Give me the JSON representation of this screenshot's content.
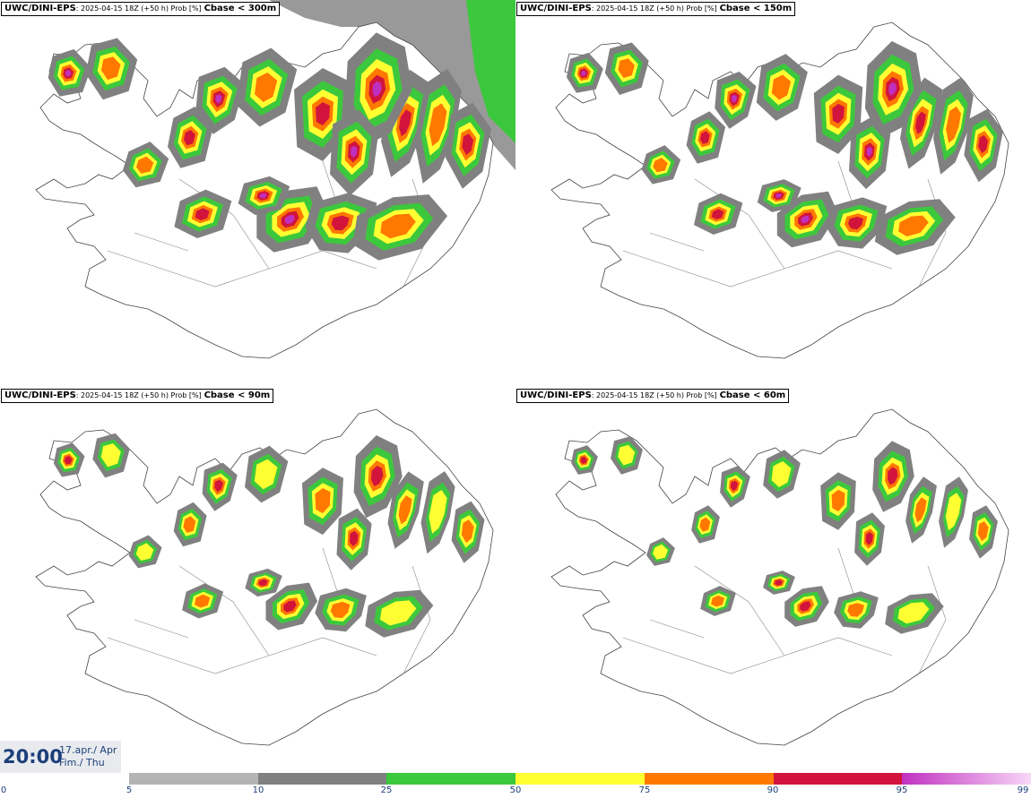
{
  "panels": [
    {
      "model": "UWC/DINI-EPS",
      "run": ": 2025-04-15 18Z (+50 h) Prob [%]",
      "threshold": "Cbase < 300m"
    },
    {
      "model": "UWC/DINI-EPS",
      "run": ": 2025-04-15 18Z (+50 h) Prob [%]",
      "threshold": "Cbase < 150m"
    },
    {
      "model": "UWC/DINI-EPS",
      "run": ": 2025-04-15 18Z (+50 h) Prob [%]",
      "threshold": "Cbase < 90m"
    },
    {
      "model": "UWC/DINI-EPS",
      "run": ": 2025-04-15 18Z (+50 h) Prob [%]",
      "threshold": "Cbase < 60m"
    }
  ],
  "valid_time": {
    "hour": "20:00",
    "date": "17.apr./ Apr",
    "day": "Fim./ Thu"
  },
  "colorbar": {
    "ticks": [
      "0",
      "5",
      "10",
      "25",
      "50",
      "75",
      "90",
      "95",
      "99"
    ],
    "colors": [
      "#b4b4b4",
      "#808080",
      "#3cc83c",
      "#ffff32",
      "#ff7800",
      "#d2143c",
      "#c030c0"
    ]
  }
}
